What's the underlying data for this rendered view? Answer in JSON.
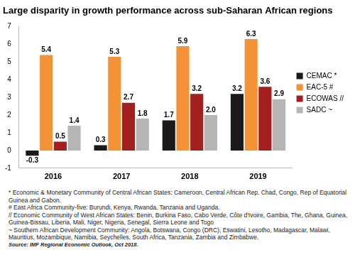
{
  "chart_data": {
    "type": "bar",
    "title": "Large disparity in growth performance across sub-Saharan African regions",
    "categories": [
      "2016",
      "2017",
      "2018",
      "2019"
    ],
    "series": [
      {
        "name": "CEMAC *",
        "color": "#1a1a1a",
        "values": [
          -0.3,
          0.3,
          1.7,
          3.2
        ],
        "value_labels": [
          "-0.3",
          "0.3",
          "1.7",
          "3.2"
        ]
      },
      {
        "name": "EAC-5 #",
        "color": "#f39237",
        "values": [
          5.4,
          5.3,
          5.9,
          6.3
        ],
        "value_labels": [
          "5.4",
          "5.3",
          "5.9",
          "6.3"
        ]
      },
      {
        "name": "ECOWAS //",
        "color": "#a3201f",
        "values": [
          0.5,
          2.7,
          3.2,
          3.6
        ],
        "value_labels": [
          "0.5",
          "2.7",
          "3.2",
          "3.6"
        ]
      },
      {
        "name": "SADC ~",
        "color": "#b5b5b5",
        "values": [
          1.4,
          1.8,
          2.0,
          2.9
        ],
        "value_labels": [
          "1.4",
          "1.8",
          "2.0",
          "2.9"
        ]
      }
    ],
    "ylim": [
      -1,
      7
    ],
    "yticks": [
      -1,
      0,
      1,
      2,
      3,
      4,
      5,
      6,
      7
    ],
    "grid": false,
    "legend": "right",
    "data_labels": true,
    "annotations": [
      "* Economic & Monetary Community of Central African States: Cameroon, Central African Rep. Chad, Congo, Rep of Equatorial Guinea and Gabon.",
      "# East Africa Community-five: Burundi, Kenya, Rwanda, Tanzania and Uganda.",
      "// Economic Community of West African States: Benin, Burkina Faso, Cabo Verde, Côte d'Ivoire, Gambia, The, Ghana, Guinea, Guinea-Bissau, Liberia, Mali, Niger, Nigeria, Senegal, Sierra Leone and Togo",
      "~ Southern African Development Community: Angola, Botswana, Congo (DRC), Eswatini, Lesotho, Madagascar, Malawi, Mauritius, Mozambique, Namibia, Seychelles, South Africa, Tanzania, Zambia and Zimbabwe."
    ],
    "source": "Source: IMF Regional Economic Outlook, Oct 2018."
  }
}
